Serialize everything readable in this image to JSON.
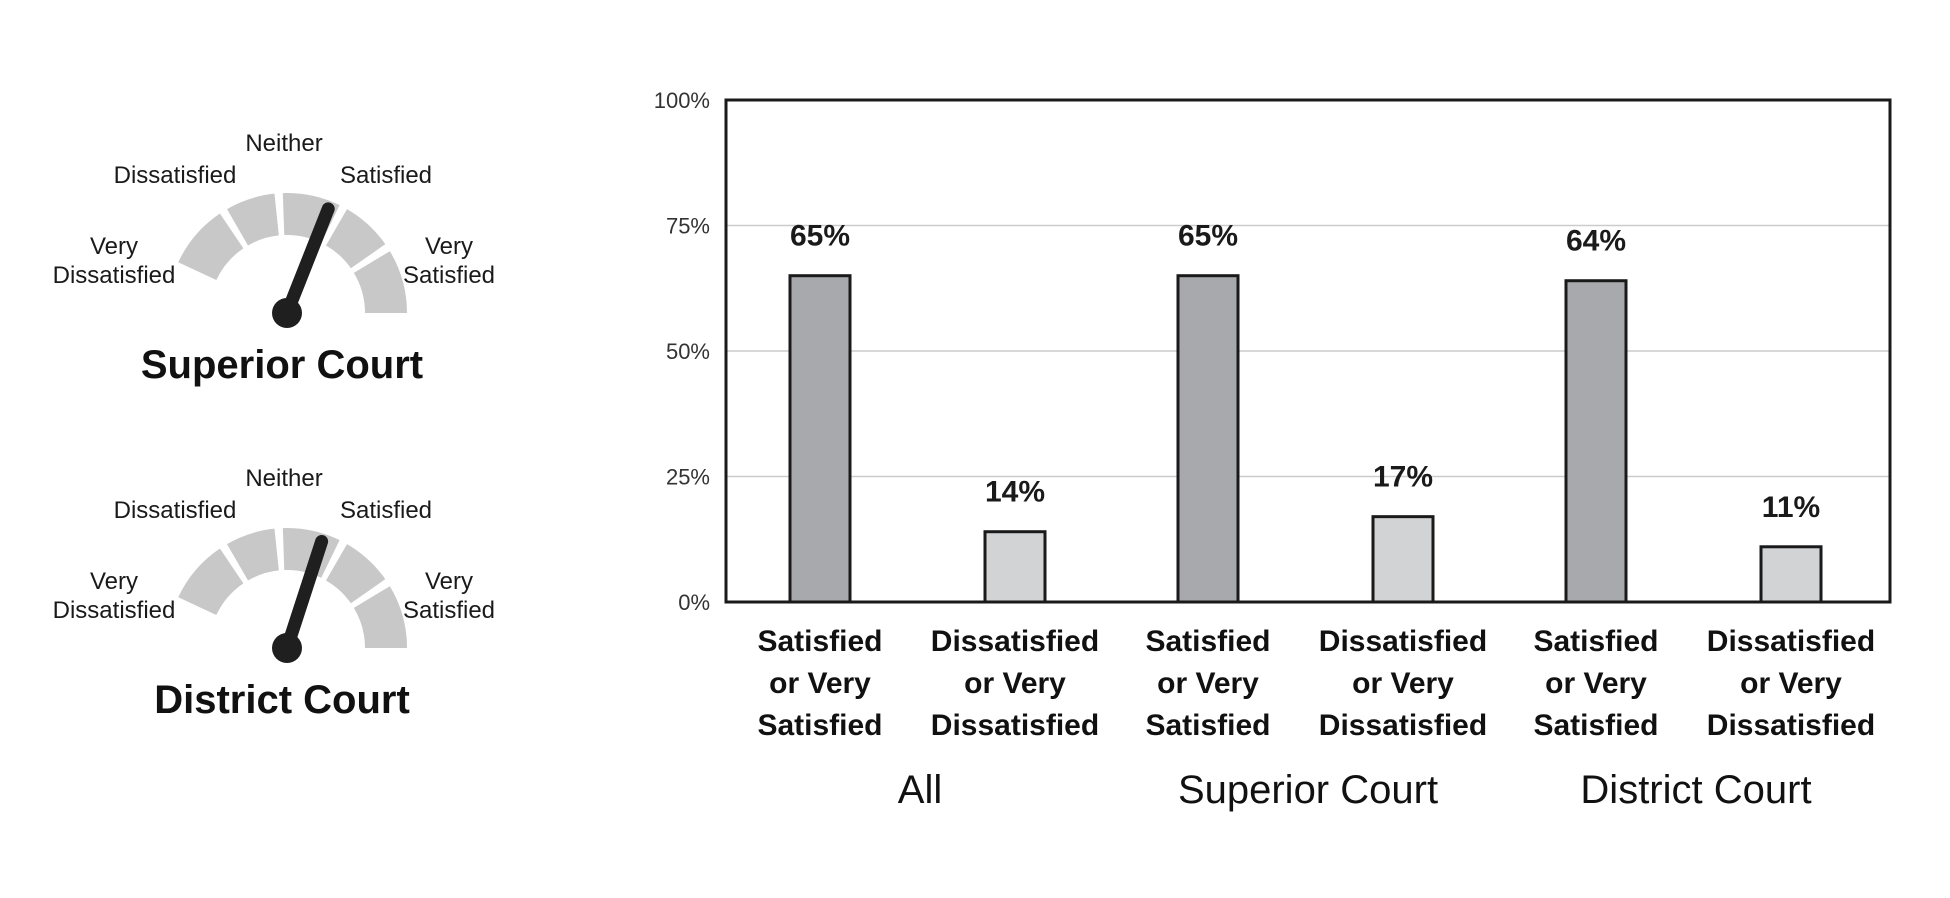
{
  "gauges": [
    {
      "title": "Superior Court",
      "scale_labels": {
        "very_dissatisfied": [
          "Very",
          "Dissatisfied"
        ],
        "dissatisfied": "Dissatisfied",
        "neither": "Neither",
        "satisfied": "Satisfied",
        "very_satisfied": [
          "Very",
          "Satisfied"
        ]
      },
      "needle_level": 0.62
    },
    {
      "title": "District Court",
      "scale_labels": {
        "very_dissatisfied": [
          "Very",
          "Dissatisfied"
        ],
        "dissatisfied": "Dissatisfied",
        "neither": "Neither",
        "satisfied": "Satisfied",
        "very_satisfied": [
          "Very",
          "Satisfied"
        ]
      },
      "needle_level": 0.6
    }
  ],
  "colors": {
    "gauge_segment": "#c8c8c8",
    "needle": "#1f1f1f",
    "bar_satisfied": "#a7a9ac",
    "bar_dissatisfied": "#d1d3d4",
    "bar_outline": "#1a1a1a",
    "gridline": "#cccccc"
  },
  "chart_data": {
    "type": "bar",
    "ylim": [
      0,
      100
    ],
    "yticks": [
      "0%",
      "25%",
      "50%",
      "75%",
      "100%"
    ],
    "ytick_values": [
      0,
      25,
      50,
      75,
      100
    ],
    "grid": true,
    "groups": [
      {
        "name": "All",
        "bars": [
          {
            "label": [
              "Satisfied",
              "or Very",
              "Satisfied"
            ],
            "value": 65,
            "value_label": "65%",
            "kind": "satisfied"
          },
          {
            "label": [
              "Dissatisfied",
              "or Very",
              "Dissatisfied"
            ],
            "value": 14,
            "value_label": "14%",
            "kind": "dissatisfied"
          }
        ]
      },
      {
        "name": "Superior Court",
        "bars": [
          {
            "label": [
              "Satisfied",
              "or Very",
              "Satisfied"
            ],
            "value": 65,
            "value_label": "65%",
            "kind": "satisfied"
          },
          {
            "label": [
              "Dissatisfied",
              "or Very",
              "Dissatisfied"
            ],
            "value": 17,
            "value_label": "17%",
            "kind": "dissatisfied"
          }
        ]
      },
      {
        "name": "District Court",
        "bars": [
          {
            "label": [
              "Satisfied",
              "or Very",
              "Satisfied"
            ],
            "value": 64,
            "value_label": "64%",
            "kind": "satisfied"
          },
          {
            "label": [
              "Dissatisfied",
              "or Very",
              "Dissatisfied"
            ],
            "value": 11,
            "value_label": "11%",
            "kind": "dissatisfied"
          }
        ]
      }
    ]
  }
}
